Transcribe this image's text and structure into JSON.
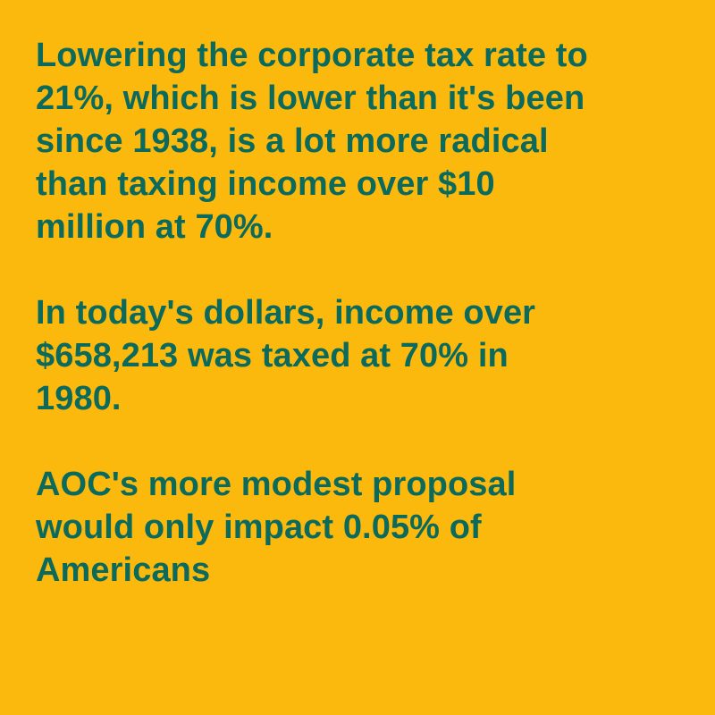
{
  "paragraphs": [
    {
      "lines": [
        "Lowering the corporate tax rate to",
        "21%, which is lower than it's been",
        "since 1938, is a lot more radical",
        "than taxing income over $10",
        "million at 70%."
      ]
    },
    {
      "lines": [
        "In today's dollars, income over",
        "$658,213 was taxed at 70% in",
        "1980."
      ]
    },
    {
      "lines": [
        "AOC's more modest proposal",
        "would only impact 0.05% of",
        "Americans"
      ]
    }
  ]
}
